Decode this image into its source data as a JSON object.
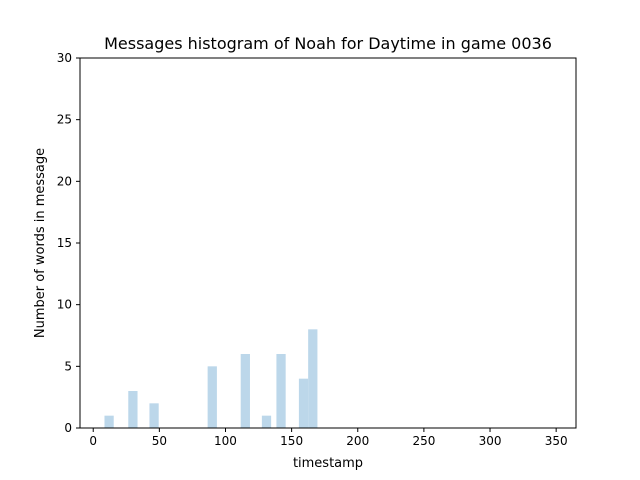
{
  "chart_data": {
    "type": "bar",
    "title": "Messages histogram of Noah for Daytime in game 0036",
    "xlabel": "timestamp",
    "ylabel": "Number of words in message",
    "xlim": [
      -10,
      365
    ],
    "ylim": [
      0,
      30
    ],
    "xticks": [
      0,
      50,
      100,
      150,
      200,
      250,
      300,
      350
    ],
    "yticks": [
      0,
      5,
      10,
      15,
      20,
      25,
      30
    ],
    "grid": false,
    "bar_color": "#bcd7ea",
    "bar_width": 7,
    "series": [
      {
        "x": [
          12,
          30,
          46,
          90,
          115,
          131,
          142,
          159,
          166
        ],
        "values": [
          1,
          3,
          2,
          5,
          6,
          1,
          6,
          4,
          8
        ]
      }
    ]
  }
}
